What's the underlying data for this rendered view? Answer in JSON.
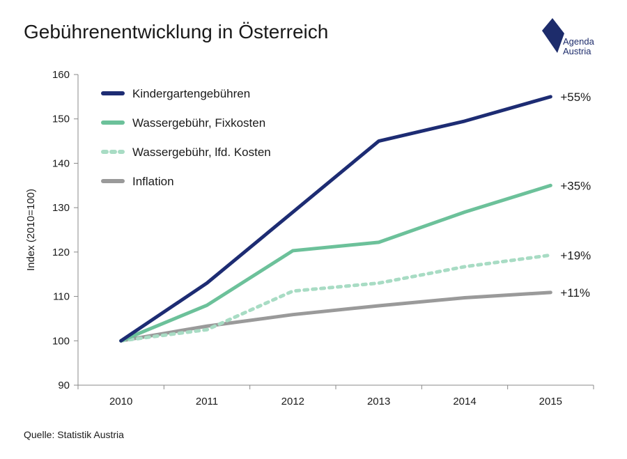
{
  "title": "Gebührenentwicklung in Österreich",
  "logo": {
    "line1": "Agenda",
    "line2": "Austria",
    "color": "#1d2c6b"
  },
  "source": "Quelle: Statistik Austria",
  "chart_data": {
    "type": "line",
    "title": "Gebührenentwicklung in Österreich",
    "ylabel": "Index (2010=100)",
    "xlabel": "",
    "x": [
      "2010",
      "2011",
      "2012",
      "2013",
      "2014",
      "2015"
    ],
    "ylim": [
      90,
      160
    ],
    "yticks": [
      90,
      100,
      110,
      120,
      130,
      140,
      150,
      160
    ],
    "grid": false,
    "legend_position": "top-left",
    "series": [
      {
        "name": "Kindergartengebühren",
        "values": [
          100,
          113,
          129,
          145,
          149.5,
          155
        ],
        "color": "#1d2c73",
        "dashed": false,
        "end_label": "+55%"
      },
      {
        "name": "Wassergebühr, Fixkosten",
        "values": [
          100,
          108,
          120.3,
          122.2,
          129,
          135
        ],
        "color": "#6cc19a",
        "dashed": false,
        "end_label": "+35%"
      },
      {
        "name": "Wassergebühr, lfd. Kosten",
        "values": [
          100,
          102.5,
          111.2,
          113,
          116.7,
          119.3
        ],
        "color": "#a8dcc4",
        "dashed": true,
        "end_label": "+19%"
      },
      {
        "name": "Inflation",
        "values": [
          100,
          103.3,
          105.9,
          107.9,
          109.7,
          110.9
        ],
        "color": "#9a9a9a",
        "dashed": false,
        "end_label": "+11%"
      }
    ]
  }
}
